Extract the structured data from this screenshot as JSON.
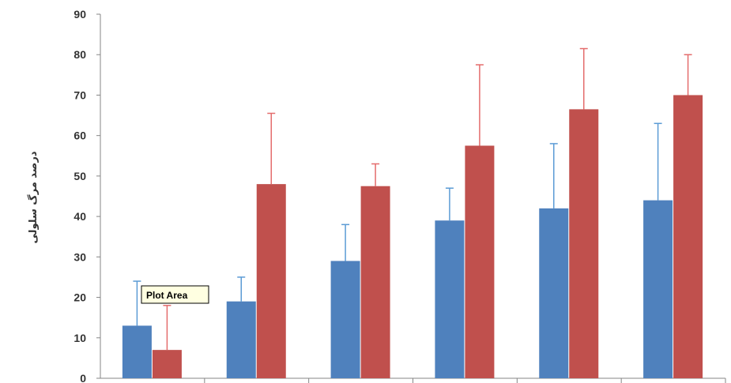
{
  "chart_data": {
    "type": "bar",
    "title": "",
    "xlabel": "",
    "ylabel": "درصد مرگ سلولی",
    "ylim": [
      0,
      90
    ],
    "yticks": [
      0,
      10,
      20,
      30,
      40,
      50,
      60,
      70,
      80,
      90
    ],
    "categories": [
      "",
      "",
      "",
      "",
      "",
      ""
    ],
    "grid": false,
    "legend": "none",
    "series": [
      {
        "color": "#4F81BD",
        "error_color": "#5B9BD5",
        "values": [
          13,
          19,
          29,
          39,
          42,
          44
        ],
        "errors": [
          11,
          6,
          9,
          8,
          16,
          19
        ]
      },
      {
        "color": "#C0504D",
        "error_color": "#E46C6C",
        "values": [
          7,
          48,
          47.5,
          57.5,
          66.5,
          70
        ],
        "errors": [
          11,
          17.5,
          5.5,
          20,
          15,
          10
        ]
      }
    ]
  },
  "tooltip": {
    "text": "Plot Area",
    "bg": "#FFFFE1"
  }
}
